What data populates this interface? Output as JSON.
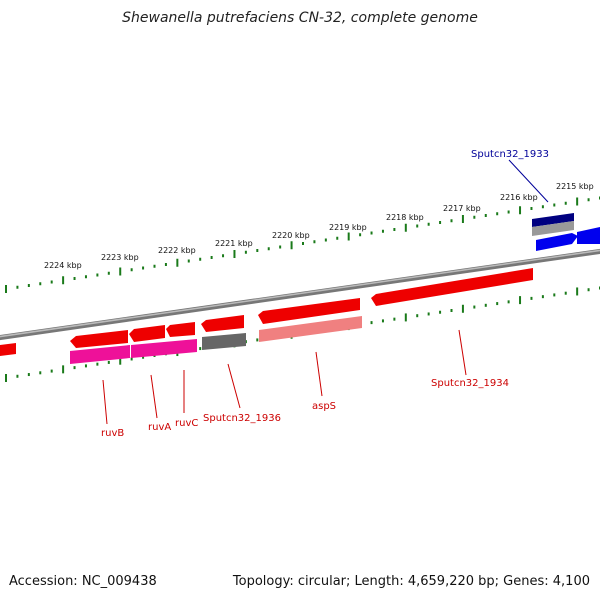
{
  "title": "Shewanella putrefaciens CN-32, complete genome",
  "footer": {
    "accession": "Accession: NC_009438",
    "summary": "Topology: circular; Length: 4,659,220 bp; Genes: 4,100"
  },
  "kbp_labels": [
    "2224 kbp",
    "2223 kbp",
    "2222 kbp",
    "2221 kbp",
    "2220 kbp",
    "2219 kbp",
    "2218 kbp",
    "2217 kbp",
    "2216 kbp",
    "2215 kbp"
  ],
  "gene_labels": [
    {
      "name": "ruvB",
      "color": "#cc0000"
    },
    {
      "name": "ruvA",
      "color": "#cc0000"
    },
    {
      "name": "ruvC",
      "color": "#cc0000"
    },
    {
      "name": "Sputcn32_1936",
      "color": "#cc0000"
    },
    {
      "name": "aspS",
      "color": "#cc0000"
    },
    {
      "name": "Sputcn32_1934",
      "color": "#cc0000"
    },
    {
      "name": "Sputcn32_1933",
      "color": "#000099"
    }
  ],
  "colors": {
    "backbone": "#8a8a8a",
    "tick": "#1a7a1a",
    "cds_forward": "#ee0000",
    "cds_reverse": "#0000ee",
    "rna": "#ee1199",
    "gray": "#666666",
    "light": "#f08080",
    "navy": "#000080"
  }
}
